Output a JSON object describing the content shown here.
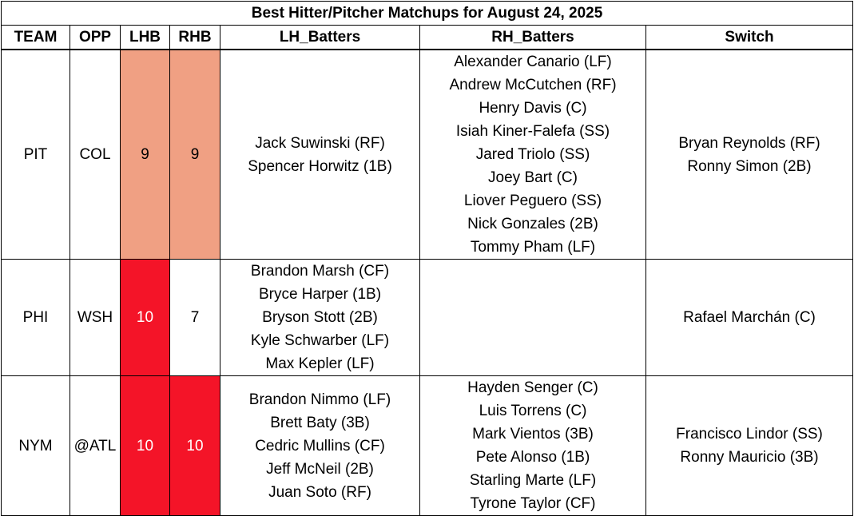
{
  "title": "Best Hitter/Pitcher Matchups for August 24, 2025",
  "headers": {
    "team": "TEAM",
    "opp": "OPP",
    "lhb": "LHB",
    "rhb": "RHB",
    "lh_batters": "LH_Batters",
    "rh_batters": "RH_Batters",
    "switch": "Switch"
  },
  "colors": {
    "score_9": "#f0a083",
    "score_10": "#f41428",
    "score_7": "#ffffff"
  },
  "rows": [
    {
      "team": "PIT",
      "opp": "COL",
      "lhb": "9",
      "rhb": "9",
      "lh_batters": [
        "Jack Suwinski (RF)",
        "Spencer Horwitz (1B)"
      ],
      "rh_batters": [
        "Alexander Canario (LF)",
        "Andrew McCutchen (RF)",
        "Henry Davis (C)",
        "Isiah Kiner-Falefa (SS)",
        "Jared Triolo (SS)",
        "Joey Bart (C)",
        "Liover Peguero (SS)",
        "Nick Gonzales (2B)",
        "Tommy Pham (LF)"
      ],
      "switch": [
        "Bryan Reynolds (RF)",
        "Ronny Simon (2B)"
      ]
    },
    {
      "team": "PHI",
      "opp": "WSH",
      "lhb": "10",
      "rhb": "7",
      "lh_batters": [
        "Brandon Marsh (CF)",
        "Bryce Harper (1B)",
        "Bryson Stott (2B)",
        "Kyle Schwarber (LF)",
        "Max Kepler (LF)"
      ],
      "rh_batters": [],
      "switch": [
        "Rafael Marchán (C)"
      ]
    },
    {
      "team": "NYM",
      "opp": "@ATL",
      "lhb": "10",
      "rhb": "10",
      "lh_batters": [
        "Brandon Nimmo (LF)",
        "Brett Baty (3B)",
        "Cedric Mullins (CF)",
        "Jeff McNeil (2B)",
        "Juan Soto (RF)"
      ],
      "rh_batters": [
        "Hayden Senger (C)",
        "Luis Torrens (C)",
        "Mark Vientos (3B)",
        "Pete Alonso (1B)",
        "Starling Marte (LF)",
        "Tyrone Taylor (CF)"
      ],
      "switch": [
        "Francisco Lindor (SS)",
        "Ronny Mauricio (3B)"
      ]
    }
  ]
}
